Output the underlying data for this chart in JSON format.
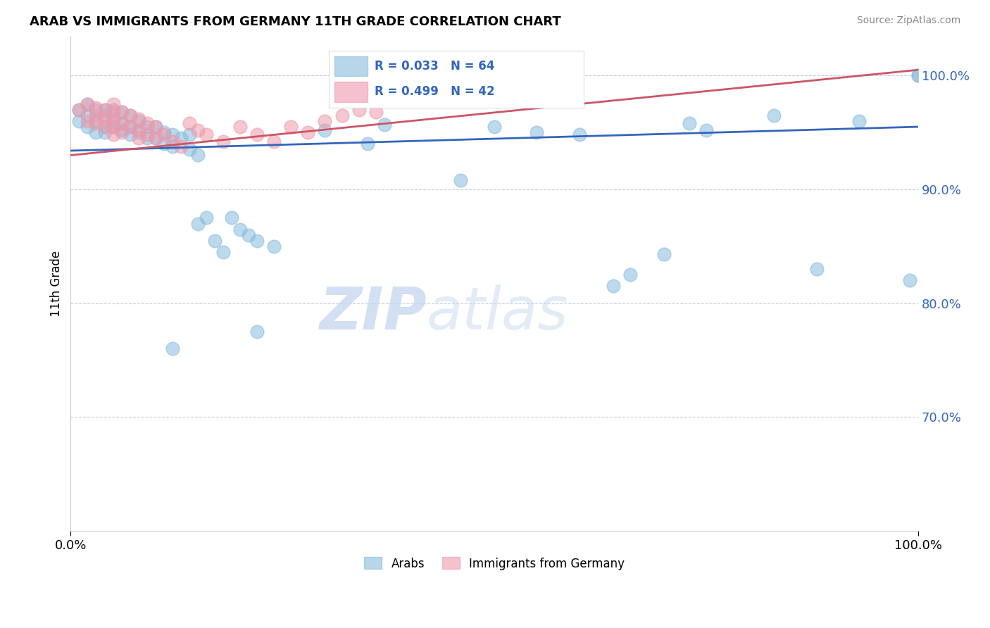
{
  "title": "ARAB VS IMMIGRANTS FROM GERMANY 11TH GRADE CORRELATION CHART",
  "source": "Source: ZipAtlas.com",
  "ylabel": "11th Grade",
  "x_min": 0.0,
  "x_max": 1.0,
  "y_min": 0.6,
  "y_max": 1.035,
  "y_ticks": [
    0.7,
    0.8,
    0.9,
    1.0
  ],
  "y_tick_labels": [
    "70.0%",
    "80.0%",
    "90.0%",
    "100.0%"
  ],
  "x_tick_labels": [
    "0.0%",
    "100.0%"
  ],
  "legend_blue_label": "Arabs",
  "legend_pink_label": "Immigrants from Germany",
  "R_blue": 0.033,
  "N_blue": 64,
  "R_pink": 0.499,
  "N_pink": 42,
  "color_blue": "#88bbdd",
  "color_pink": "#ee99aa",
  "color_blue_line": "#3366bb",
  "color_pink_line": "#cc5566",
  "watermark_zip": "ZIP",
  "watermark_atlas": "atlas",
  "blue_x": [
    0.01,
    0.01,
    0.02,
    0.02,
    0.02,
    0.03,
    0.03,
    0.03,
    0.04,
    0.04,
    0.04,
    0.04,
    0.05,
    0.05,
    0.05,
    0.06,
    0.06,
    0.06,
    0.07,
    0.07,
    0.07,
    0.08,
    0.08,
    0.09,
    0.09,
    0.1,
    0.1,
    0.11,
    0.11,
    0.12,
    0.12,
    0.13,
    0.14,
    0.14,
    0.15,
    0.16,
    0.17,
    0.19,
    0.2,
    0.21,
    0.22,
    0.24,
    0.3,
    0.37,
    0.46,
    0.5,
    0.55,
    0.6,
    0.64,
    0.66,
    0.7,
    0.73,
    0.75,
    0.83,
    0.88,
    0.93,
    0.99,
    1.0,
    1.0,
    0.15,
    0.18,
    0.12,
    0.22,
    0.35
  ],
  "blue_y": [
    0.97,
    0.96,
    0.975,
    0.965,
    0.955,
    0.97,
    0.96,
    0.95,
    0.97,
    0.965,
    0.955,
    0.95,
    0.97,
    0.96,
    0.955,
    0.968,
    0.958,
    0.952,
    0.965,
    0.955,
    0.948,
    0.96,
    0.95,
    0.955,
    0.945,
    0.955,
    0.945,
    0.95,
    0.94,
    0.948,
    0.938,
    0.945,
    0.948,
    0.935,
    0.93,
    0.875,
    0.855,
    0.875,
    0.865,
    0.86,
    0.855,
    0.85,
    0.952,
    0.957,
    0.908,
    0.955,
    0.95,
    0.948,
    0.815,
    0.825,
    0.843,
    0.958,
    0.952,
    0.965,
    0.83,
    0.96,
    0.82,
    1.0,
    1.0,
    0.87,
    0.845,
    0.76,
    0.775,
    0.94
  ],
  "pink_x": [
    0.01,
    0.02,
    0.02,
    0.03,
    0.03,
    0.03,
    0.04,
    0.04,
    0.04,
    0.05,
    0.05,
    0.05,
    0.05,
    0.05,
    0.06,
    0.06,
    0.06,
    0.07,
    0.07,
    0.08,
    0.08,
    0.08,
    0.09,
    0.09,
    0.1,
    0.1,
    0.11,
    0.12,
    0.13,
    0.14,
    0.15,
    0.16,
    0.18,
    0.2,
    0.22,
    0.24,
    0.26,
    0.28,
    0.3,
    0.32,
    0.34,
    0.36
  ],
  "pink_y": [
    0.97,
    0.975,
    0.96,
    0.972,
    0.965,
    0.958,
    0.97,
    0.962,
    0.955,
    0.975,
    0.968,
    0.962,
    0.955,
    0.948,
    0.968,
    0.958,
    0.95,
    0.965,
    0.955,
    0.962,
    0.952,
    0.945,
    0.958,
    0.948,
    0.955,
    0.945,
    0.948,
    0.942,
    0.938,
    0.958,
    0.952,
    0.948,
    0.942,
    0.955,
    0.948,
    0.942,
    0.955,
    0.95,
    0.96,
    0.965,
    0.97,
    0.968
  ],
  "blue_trendline_x": [
    0.0,
    1.0
  ],
  "blue_trendline_y": [
    0.934,
    0.955
  ],
  "pink_trendline_x": [
    0.0,
    1.0
  ],
  "pink_trendline_y": [
    0.93,
    1.005
  ]
}
